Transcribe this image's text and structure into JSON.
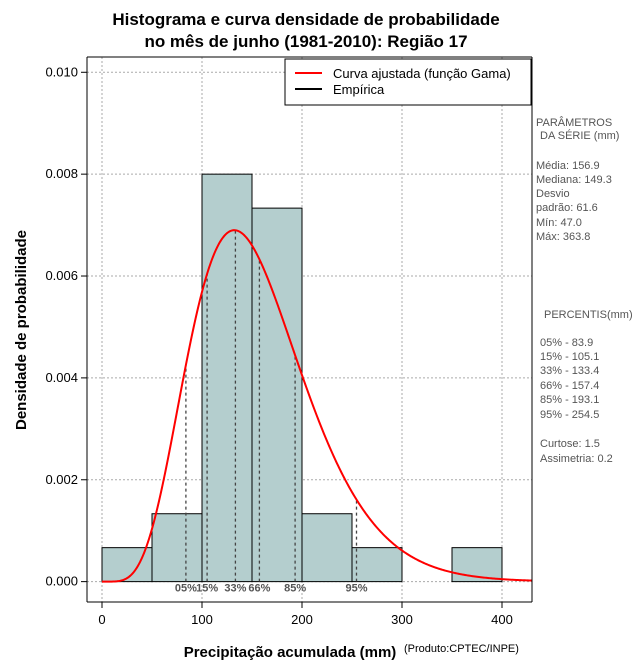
{
  "chart_data": {
    "type": "bar",
    "title_line1": "Histograma e curva densidade de probabilidade",
    "title_line2": "no mês de junho (1981-2010): Região 17",
    "xlabel": "Precipitação acumulada (mm)",
    "ylabel": "Densidade de probabilidade",
    "credit": "(Produto:CPTEC/INPE)",
    "xlim": [
      -15,
      430
    ],
    "ylim": [
      -0.0004,
      0.0103
    ],
    "x_ticks": [
      0,
      100,
      200,
      300,
      400
    ],
    "y_ticks": [
      "0.000",
      "0.002",
      "0.004",
      "0.006",
      "0.008",
      "0.010"
    ],
    "grid": true,
    "bins": [
      {
        "x0": 0,
        "x1": 50,
        "density": 0.000667
      },
      {
        "x0": 50,
        "x1": 100,
        "density": 0.001333
      },
      {
        "x0": 100,
        "x1": 150,
        "density": 0.008
      },
      {
        "x0": 150,
        "x1": 200,
        "density": 0.007333
      },
      {
        "x0": 200,
        "x1": 250,
        "density": 0.001333
      },
      {
        "x0": 250,
        "x1": 300,
        "density": 0.000667
      },
      {
        "x0": 300,
        "x1": 350,
        "density": 0.0
      },
      {
        "x0": 350,
        "x1": 400,
        "density": 0.000667
      }
    ],
    "gamma_fit": {
      "shape": 6.4,
      "scale": 24.5
    },
    "legend": {
      "position": "top-right",
      "entries": [
        {
          "label": "Curva ajustada (função Gama)",
          "color": "#ff0000"
        },
        {
          "label": "Empírica",
          "color": "#000000"
        }
      ]
    },
    "percentile_markers": [
      {
        "label": "05%",
        "value": 83.9
      },
      {
        "label": "15%",
        "value": 105.1
      },
      {
        "label": "33%",
        "value": 133.4
      },
      {
        "label": "66%",
        "value": 157.4
      },
      {
        "label": "85%",
        "value": 193.1
      },
      {
        "label": "95%",
        "value": 254.5
      }
    ],
    "colors": {
      "bar_fill": "#b4cece",
      "curve": "#ff0000",
      "grid": "#aaaaaa"
    }
  },
  "side_panel": {
    "params_title_1": "PARÂMETROS",
    "params_title_2": "DA SÉRIE (mm)",
    "params": [
      "Média:  156.9",
      "Mediana:  149.3",
      "Desvio",
      "padrão:  61.6",
      "Mín:  47.0",
      "Máx:  363.8"
    ],
    "pct_title": "PERCENTIS(mm)",
    "percentiles": [
      "05% -  83.9",
      "15% -  105.1",
      "33% -  133.4",
      "66% -  157.4",
      "85% -  193.1",
      "95% -  254.5"
    ],
    "stats": [
      "Curtose:  1.5",
      "Assimetria:  0.2"
    ]
  }
}
